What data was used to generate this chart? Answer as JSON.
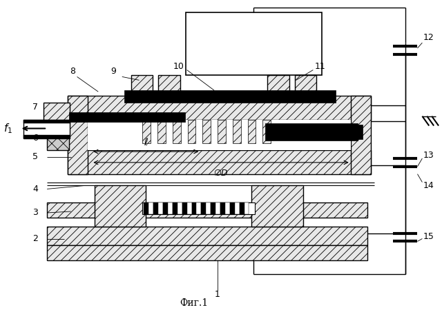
{
  "title": "Фиг.1",
  "bg_color": "#ffffff",
  "fig_width": 6.4,
  "fig_height": 4.53,
  "dpi": 100
}
